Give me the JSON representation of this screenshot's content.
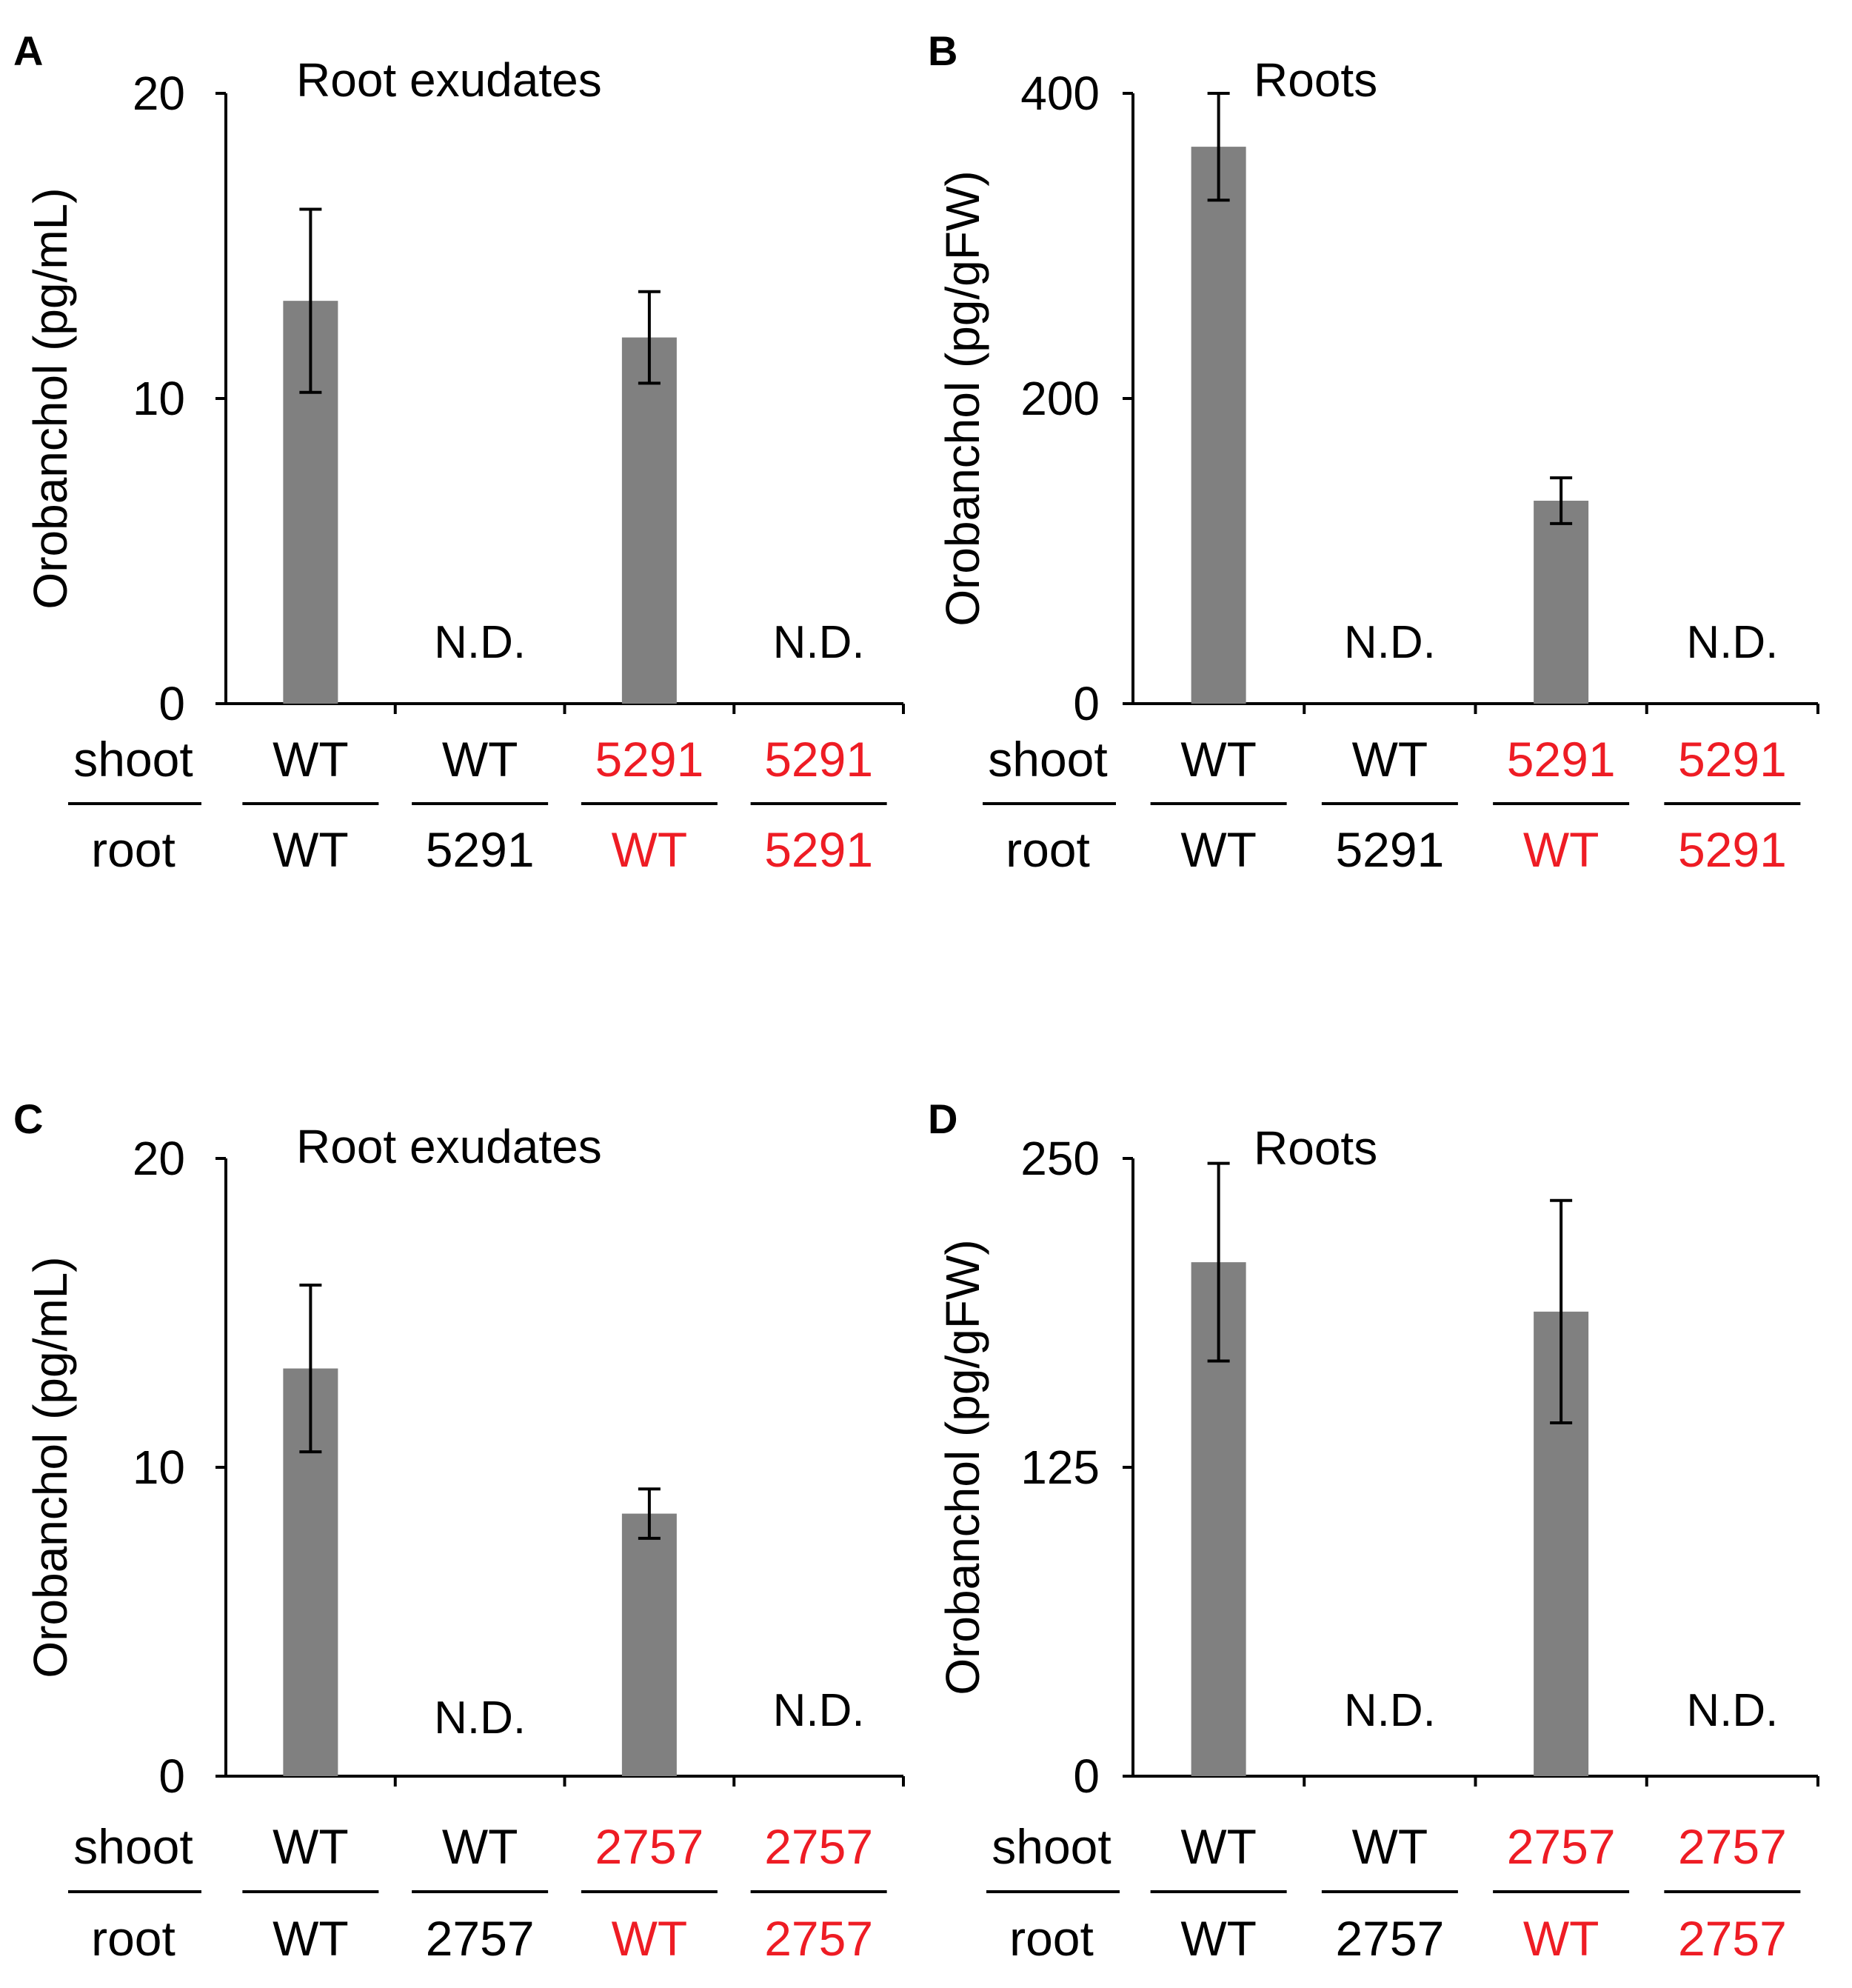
{
  "figure": {
    "bar_color": "#808080",
    "text_color": "#000000",
    "highlight_color": "#ee1c24",
    "row_labels": {
      "shoot": "shoot",
      "root": "root"
    },
    "not_detected_label": "N.D."
  },
  "chart_data": [
    {
      "panel": "A",
      "type": "bar",
      "title": "Root exudates",
      "ylabel": "Orobanchol (pg/mL)",
      "ylim": [
        0,
        20
      ],
      "yticks": [
        "0",
        "10",
        "20"
      ],
      "grid": false,
      "categories": [
        "WT/WT",
        "WT/5291",
        "5291/WT",
        "5291/5291"
      ],
      "shoot": [
        "WT",
        "WT",
        "5291",
        "5291"
      ],
      "root": [
        "WT",
        "5291",
        "WT",
        "5291"
      ],
      "shoot_red": [
        false,
        false,
        true,
        true
      ],
      "root_red": [
        false,
        false,
        true,
        true
      ],
      "values": [
        13.2,
        null,
        12.0,
        null
      ],
      "errors": [
        3.0,
        null,
        1.5,
        null
      ],
      "not_detected": [
        false,
        true,
        false,
        true
      ]
    },
    {
      "panel": "B",
      "type": "bar",
      "title": "Roots",
      "ylabel": "Orobanchol (pg/gFW)",
      "ylim": [
        0,
        400
      ],
      "yticks": [
        "0",
        "200",
        "400"
      ],
      "grid": false,
      "categories": [
        "WT/WT",
        "WT/5291",
        "5291/WT",
        "5291/5291"
      ],
      "shoot": [
        "WT",
        "WT",
        "5291",
        "5291"
      ],
      "root": [
        "WT",
        "5291",
        "WT",
        "5291"
      ],
      "shoot_red": [
        false,
        false,
        true,
        true
      ],
      "root_red": [
        false,
        false,
        true,
        true
      ],
      "values": [
        365,
        null,
        133,
        null
      ],
      "errors": [
        35,
        null,
        15,
        null
      ],
      "not_detected": [
        false,
        true,
        false,
        true
      ]
    },
    {
      "panel": "C",
      "type": "bar",
      "title": "Root exudates",
      "ylabel": "Orobanchol (pg/mL)",
      "ylim": [
        0,
        20
      ],
      "yticks": [
        "0",
        "10",
        "20"
      ],
      "grid": false,
      "categories": [
        "WT/WT",
        "WT/2757",
        "2757/WT",
        "2757/2757"
      ],
      "shoot": [
        "WT",
        "WT",
        "2757",
        "2757"
      ],
      "root": [
        "WT",
        "2757",
        "WT",
        "2757"
      ],
      "shoot_red": [
        false,
        false,
        true,
        true
      ],
      "root_red": [
        false,
        false,
        true,
        true
      ],
      "values": [
        13.2,
        null,
        8.5,
        null
      ],
      "errors": [
        2.7,
        null,
        0.8,
        null
      ],
      "not_detected": [
        false,
        true,
        false,
        true
      ]
    },
    {
      "panel": "D",
      "type": "bar",
      "title": "Roots",
      "ylabel": "Orobanchol (pg/gFW)",
      "ylim": [
        0,
        250
      ],
      "yticks": [
        "0",
        "125",
        "250"
      ],
      "grid": false,
      "categories": [
        "WT/WT",
        "WT/2757",
        "2757/WT",
        "2757/2757"
      ],
      "shoot": [
        "WT",
        "WT",
        "2757",
        "2757"
      ],
      "root": [
        "WT",
        "2757",
        "WT",
        "2757"
      ],
      "shoot_red": [
        false,
        false,
        true,
        true
      ],
      "root_red": [
        false,
        false,
        true,
        true
      ],
      "values": [
        208,
        null,
        188,
        null
      ],
      "errors": [
        40,
        null,
        45,
        null
      ],
      "not_detected": [
        false,
        true,
        false,
        true
      ]
    }
  ]
}
